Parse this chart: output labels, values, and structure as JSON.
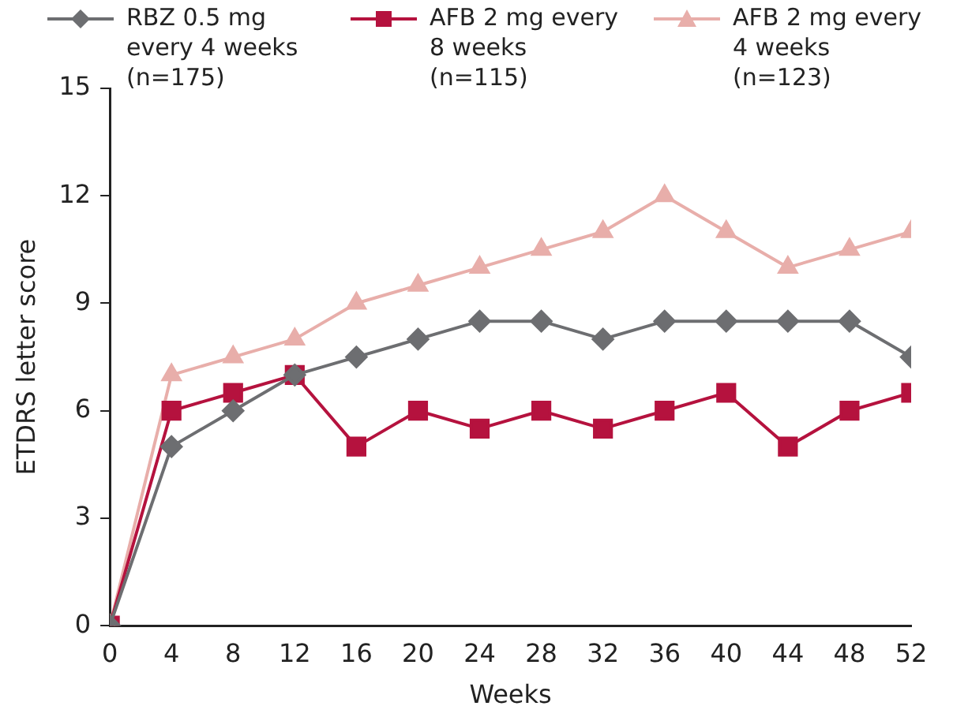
{
  "chart_data": {
    "type": "line",
    "xlabel": "Weeks",
    "ylabel": "ETDRS letter score",
    "x": [
      0,
      4,
      8,
      12,
      16,
      20,
      24,
      28,
      32,
      36,
      40,
      44,
      48,
      52
    ],
    "xlim": [
      0,
      52
    ],
    "xticks": [
      0,
      4,
      8,
      12,
      16,
      20,
      24,
      28,
      32,
      36,
      40,
      44,
      48,
      52
    ],
    "ylim": [
      0,
      15
    ],
    "yticks": [
      0,
      3,
      6,
      9,
      12,
      15
    ],
    "grid": false,
    "legend": "top",
    "series": [
      {
        "name": "RBZ 0.5 mg every 4 weeks (n=175)",
        "color": "#6d6e71",
        "marker": "diamond",
        "values": [
          0,
          5,
          6,
          7,
          7.5,
          8,
          8.5,
          8.5,
          8,
          8.5,
          8.5,
          8.5,
          8.5,
          7.5
        ]
      },
      {
        "name": "AFB 2 mg every 8 weeks (n=115)",
        "color": "#b5123e",
        "marker": "square",
        "values": [
          0,
          6,
          6.5,
          7,
          5,
          6,
          5.5,
          6,
          5.5,
          6,
          6.5,
          5,
          6,
          6.5
        ]
      },
      {
        "name": "AFB 2 mg every 4 weeks (n=123)",
        "color": "#e8aeaa",
        "marker": "triangle",
        "values": [
          0,
          7,
          7.5,
          8,
          9,
          9.5,
          10,
          10.5,
          11,
          12,
          11,
          10,
          10.5,
          11
        ]
      }
    ]
  }
}
